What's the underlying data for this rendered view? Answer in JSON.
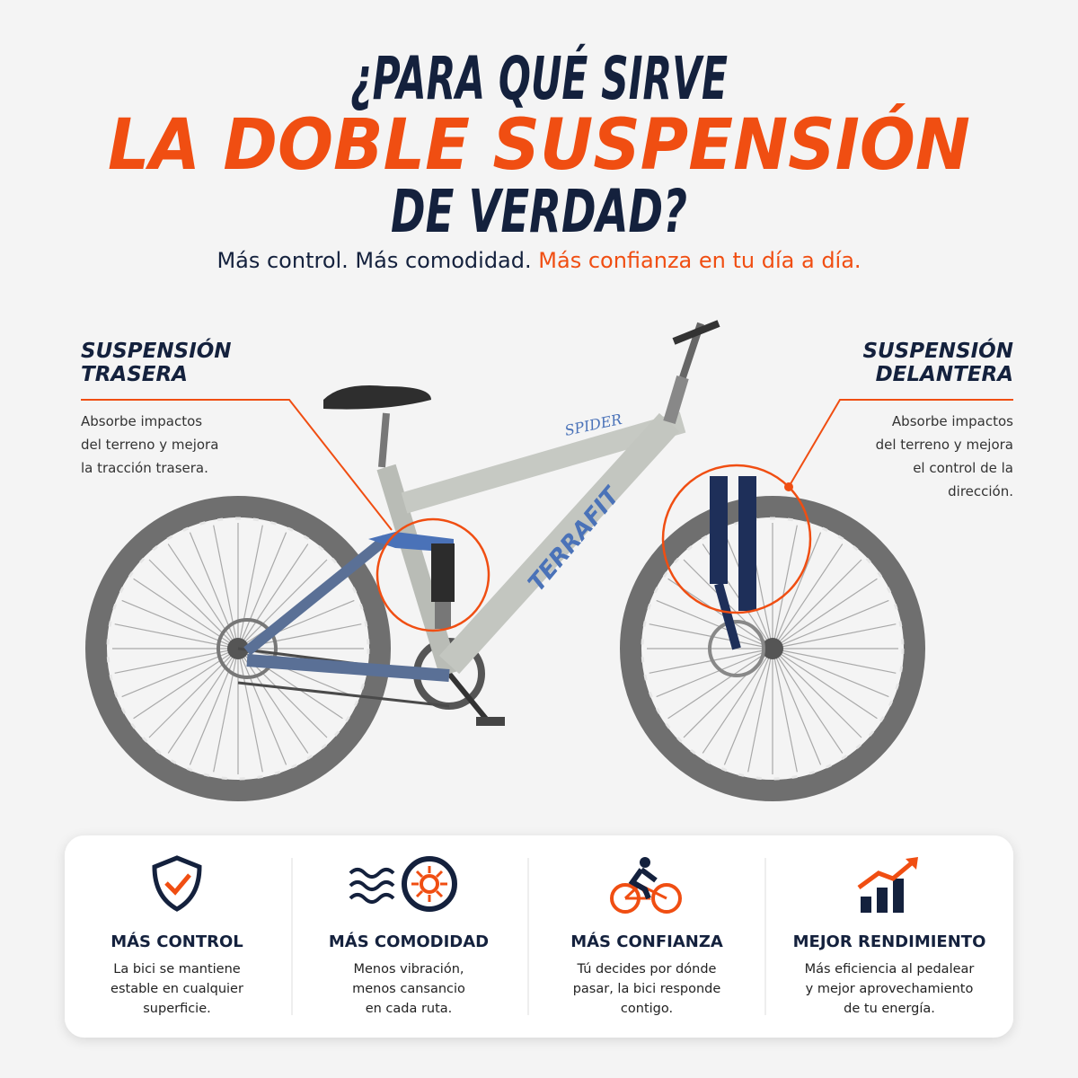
{
  "header": {
    "title_lines": [
      "¿PARA QUÉ SIRVE",
      "LA DOBLE SUSPENSIÓN",
      "DE VERDAD?"
    ],
    "subtitle": "Más control. Más comodidad.",
    "subtitle_highlight": "Más confianza en tu día a día."
  },
  "bike": {
    "model": "SPIDER",
    "brand": "TERRAFIT"
  },
  "callouts": [
    {
      "title_lines": [
        "SUSPENSIÓN",
        "TRASERA"
      ],
      "text_lines": [
        "Absorbe impactos",
        "del terreno y mejora",
        "la tracción trasera."
      ]
    },
    {
      "title_lines": [
        "SUSPENSIÓN",
        "DELANTERA"
      ],
      "text_lines": [
        "Absorbe impactos",
        "del terreno y mejora",
        "el control de la",
        "dirección."
      ]
    }
  ],
  "features": [
    {
      "title": "MÁS CONTROL",
      "text_lines": [
        "La bici se mantiene",
        "estable en cualquier",
        "superficie."
      ]
    },
    {
      "title": "MÁS COMODIDAD",
      "text_lines": [
        "Menos vibración,",
        "menos cansancio",
        "en cada ruta."
      ]
    },
    {
      "title": "MÁS CONFIANZA",
      "text_lines": [
        "Tú decides por dónde",
        "pasar, la bici responde",
        "contigo."
      ]
    },
    {
      "title": "MEJOR RENDIMIENTO",
      "text_lines": [
        "Más eficiencia al pedalear",
        "y mejor aprovechamiento",
        "de tu energía."
      ]
    }
  ]
}
